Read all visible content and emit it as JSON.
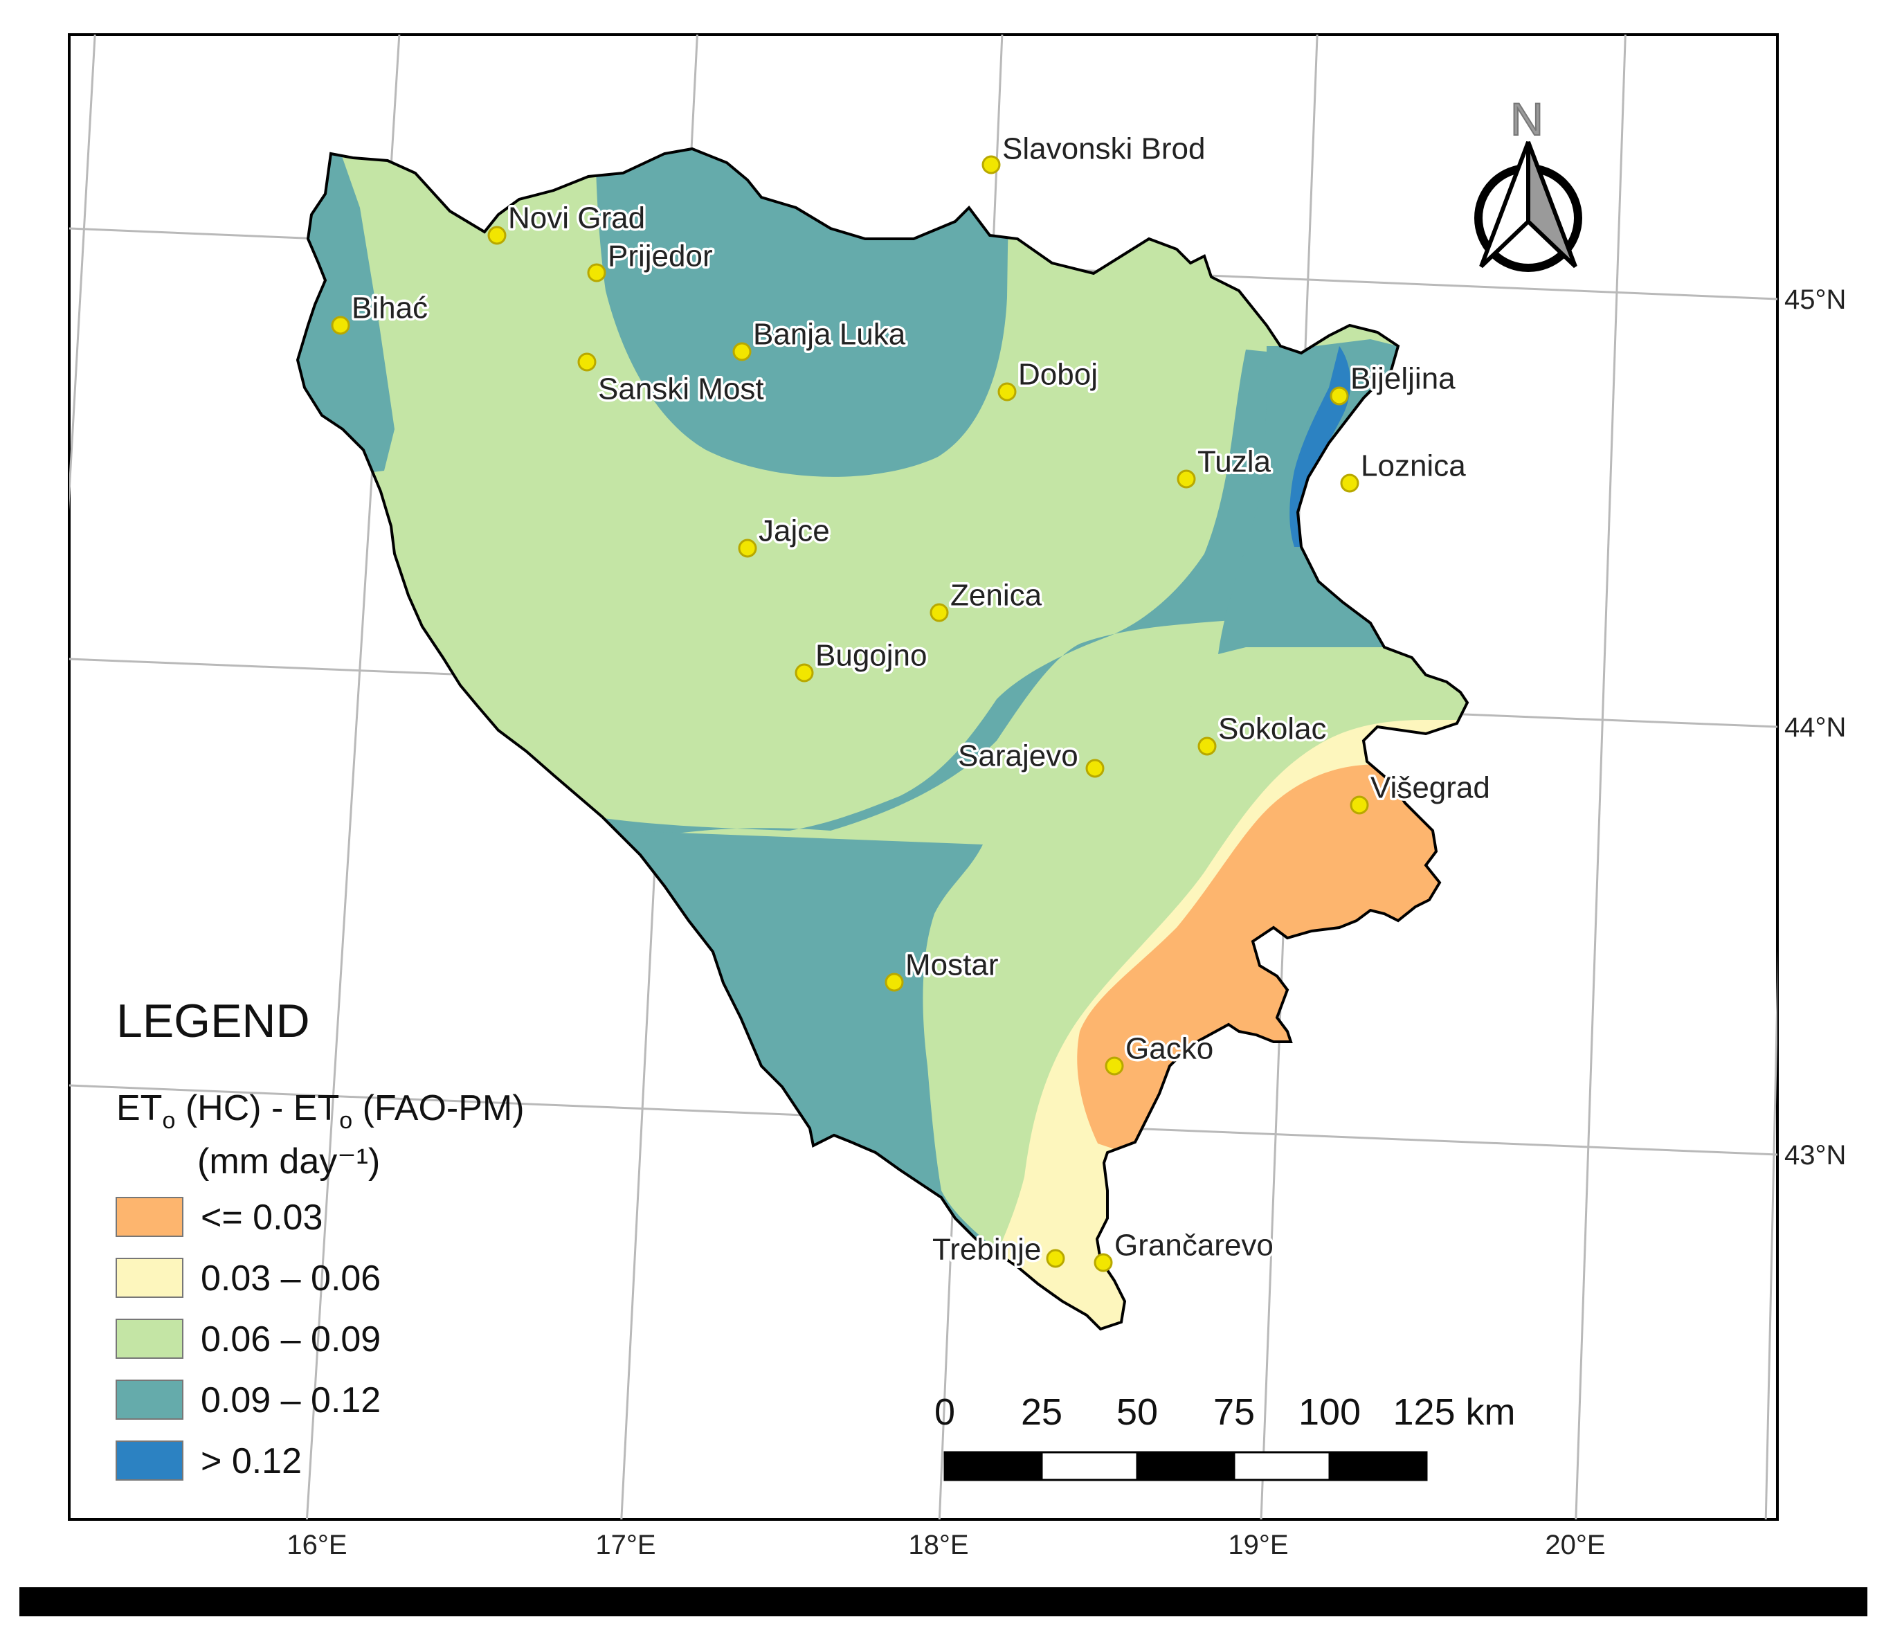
{
  "legend": {
    "heading": "LEGEND",
    "variable_line1": "ETo (HC) -  ETo (FAO-PM)",
    "variable_line2": "(mm day⁻¹)",
    "classes": [
      {
        "label": "<= 0.03",
        "color": "#fdb56e"
      },
      {
        "label": "0.03 – 0.06",
        "color": "#fdf6bd"
      },
      {
        "label": "0.06 – 0.09",
        "color": "#c4e5a5"
      },
      {
        "label": "0.09 – 0.12",
        "color": "#65abab"
      },
      {
        "label": "> 0.12",
        "color": "#2c82c2"
      }
    ]
  },
  "cities": [
    {
      "name": "Slavonski Brod"
    },
    {
      "name": "Novi Grad"
    },
    {
      "name": "Prijedor"
    },
    {
      "name": "Bihać"
    },
    {
      "name": "Banja Luka"
    },
    {
      "name": "Sanski Most"
    },
    {
      "name": "Doboj"
    },
    {
      "name": "Bijeljina"
    },
    {
      "name": "Tuzla"
    },
    {
      "name": "Loznica"
    },
    {
      "name": "Jajce"
    },
    {
      "name": "Zenica"
    },
    {
      "name": "Bugojno"
    },
    {
      "name": "Sokolac"
    },
    {
      "name": "Sarajevo"
    },
    {
      "name": "Višegrad"
    },
    {
      "name": "Mostar"
    },
    {
      "name": "Gacko"
    },
    {
      "name": "Trebinje"
    },
    {
      "name": "Grančarevo"
    }
  ],
  "graticule": {
    "longitudes": [
      "16°E",
      "17°E",
      "18°E",
      "19°E",
      "20°E"
    ],
    "latitudes": [
      "45°N",
      "44°N",
      "43°N"
    ]
  },
  "north_arrow": {
    "letter": "N"
  },
  "scale_bar": {
    "ticks": [
      "0",
      "25",
      "50",
      "75",
      "100",
      "125 km"
    ]
  },
  "colors": {
    "border": "#000000",
    "city_marker": "#f2e600",
    "graticule": "#b9b9b9"
  }
}
